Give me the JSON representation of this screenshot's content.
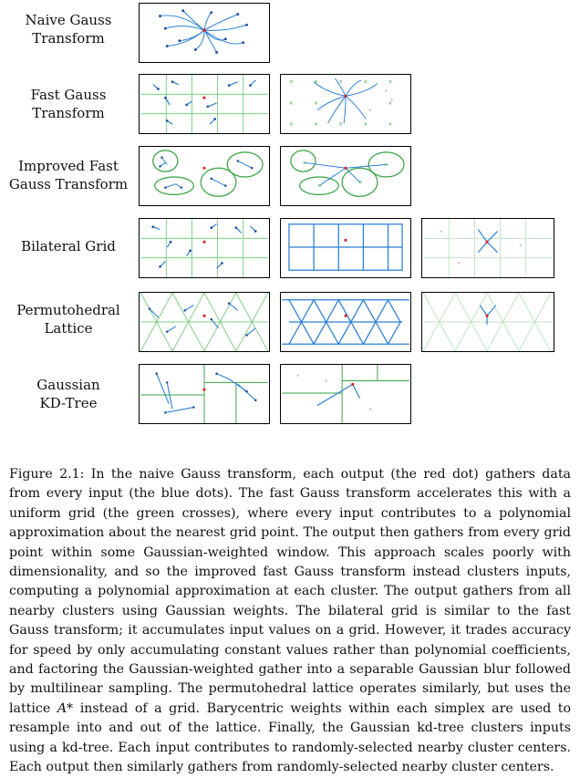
{
  "rows": [
    {
      "label": [
        "Naive Gauss",
        "Transform"
      ]
    },
    {
      "label": [
        "Fast Gauss",
        "Transform"
      ]
    },
    {
      "label": [
        "Improved Fast",
        "Gauss Transform"
      ]
    },
    {
      "label": [
        "Bilateral Grid"
      ]
    },
    {
      "label": [
        "Permutohedral",
        "Lattice"
      ]
    },
    {
      "label": [
        "Gaussian",
        "KD-Tree"
      ]
    }
  ],
  "caption": {
    "lead": "Figure 2.1:  In the naive Gauss transform, each output (the red dot) gathers data from every input (the blue dots).  The fast Gauss transform accelerates this with a uniform grid (the green crosses), where every input contributes to a polynomial approximation about the nearest grid point.  The output then gathers from every grid point within some Gaussian-weighted window. This approach scales poorly with dimensionality, and so the improved fast Gauss transform instead clusters inputs, computing a polynomial approximation at each cluster.  The output gathers from all nearby clusters using Gaussian weights.  The bilateral grid is similar to the fast Gauss transform; it accumulates input values on a grid. However, it trades accuracy for speed by only accumulating constant values rather than polynomial coefficients, and factoring the Gaussian-weighted gather into a separable Gaussian blur followed by multilinear sampling.  The permutohedral lattice operates similarly, but uses the lattice ",
    "lattice_symbol": "A*",
    "tail": " instead of a grid.  Barycentric weights within each simplex are used to resample into and out of the lattice.  Finally, the Gaussian kd-tree clusters inputs using a kd-tree. Each input contributes to randomly-selected nearby cluster centers. Each output then similarly gathers from randomly-selected nearby cluster centers."
  },
  "colors": {
    "input": "#1f4e9c",
    "output": "#e02020",
    "grid": "#3aa346",
    "edge": "#2a7fd4"
  }
}
